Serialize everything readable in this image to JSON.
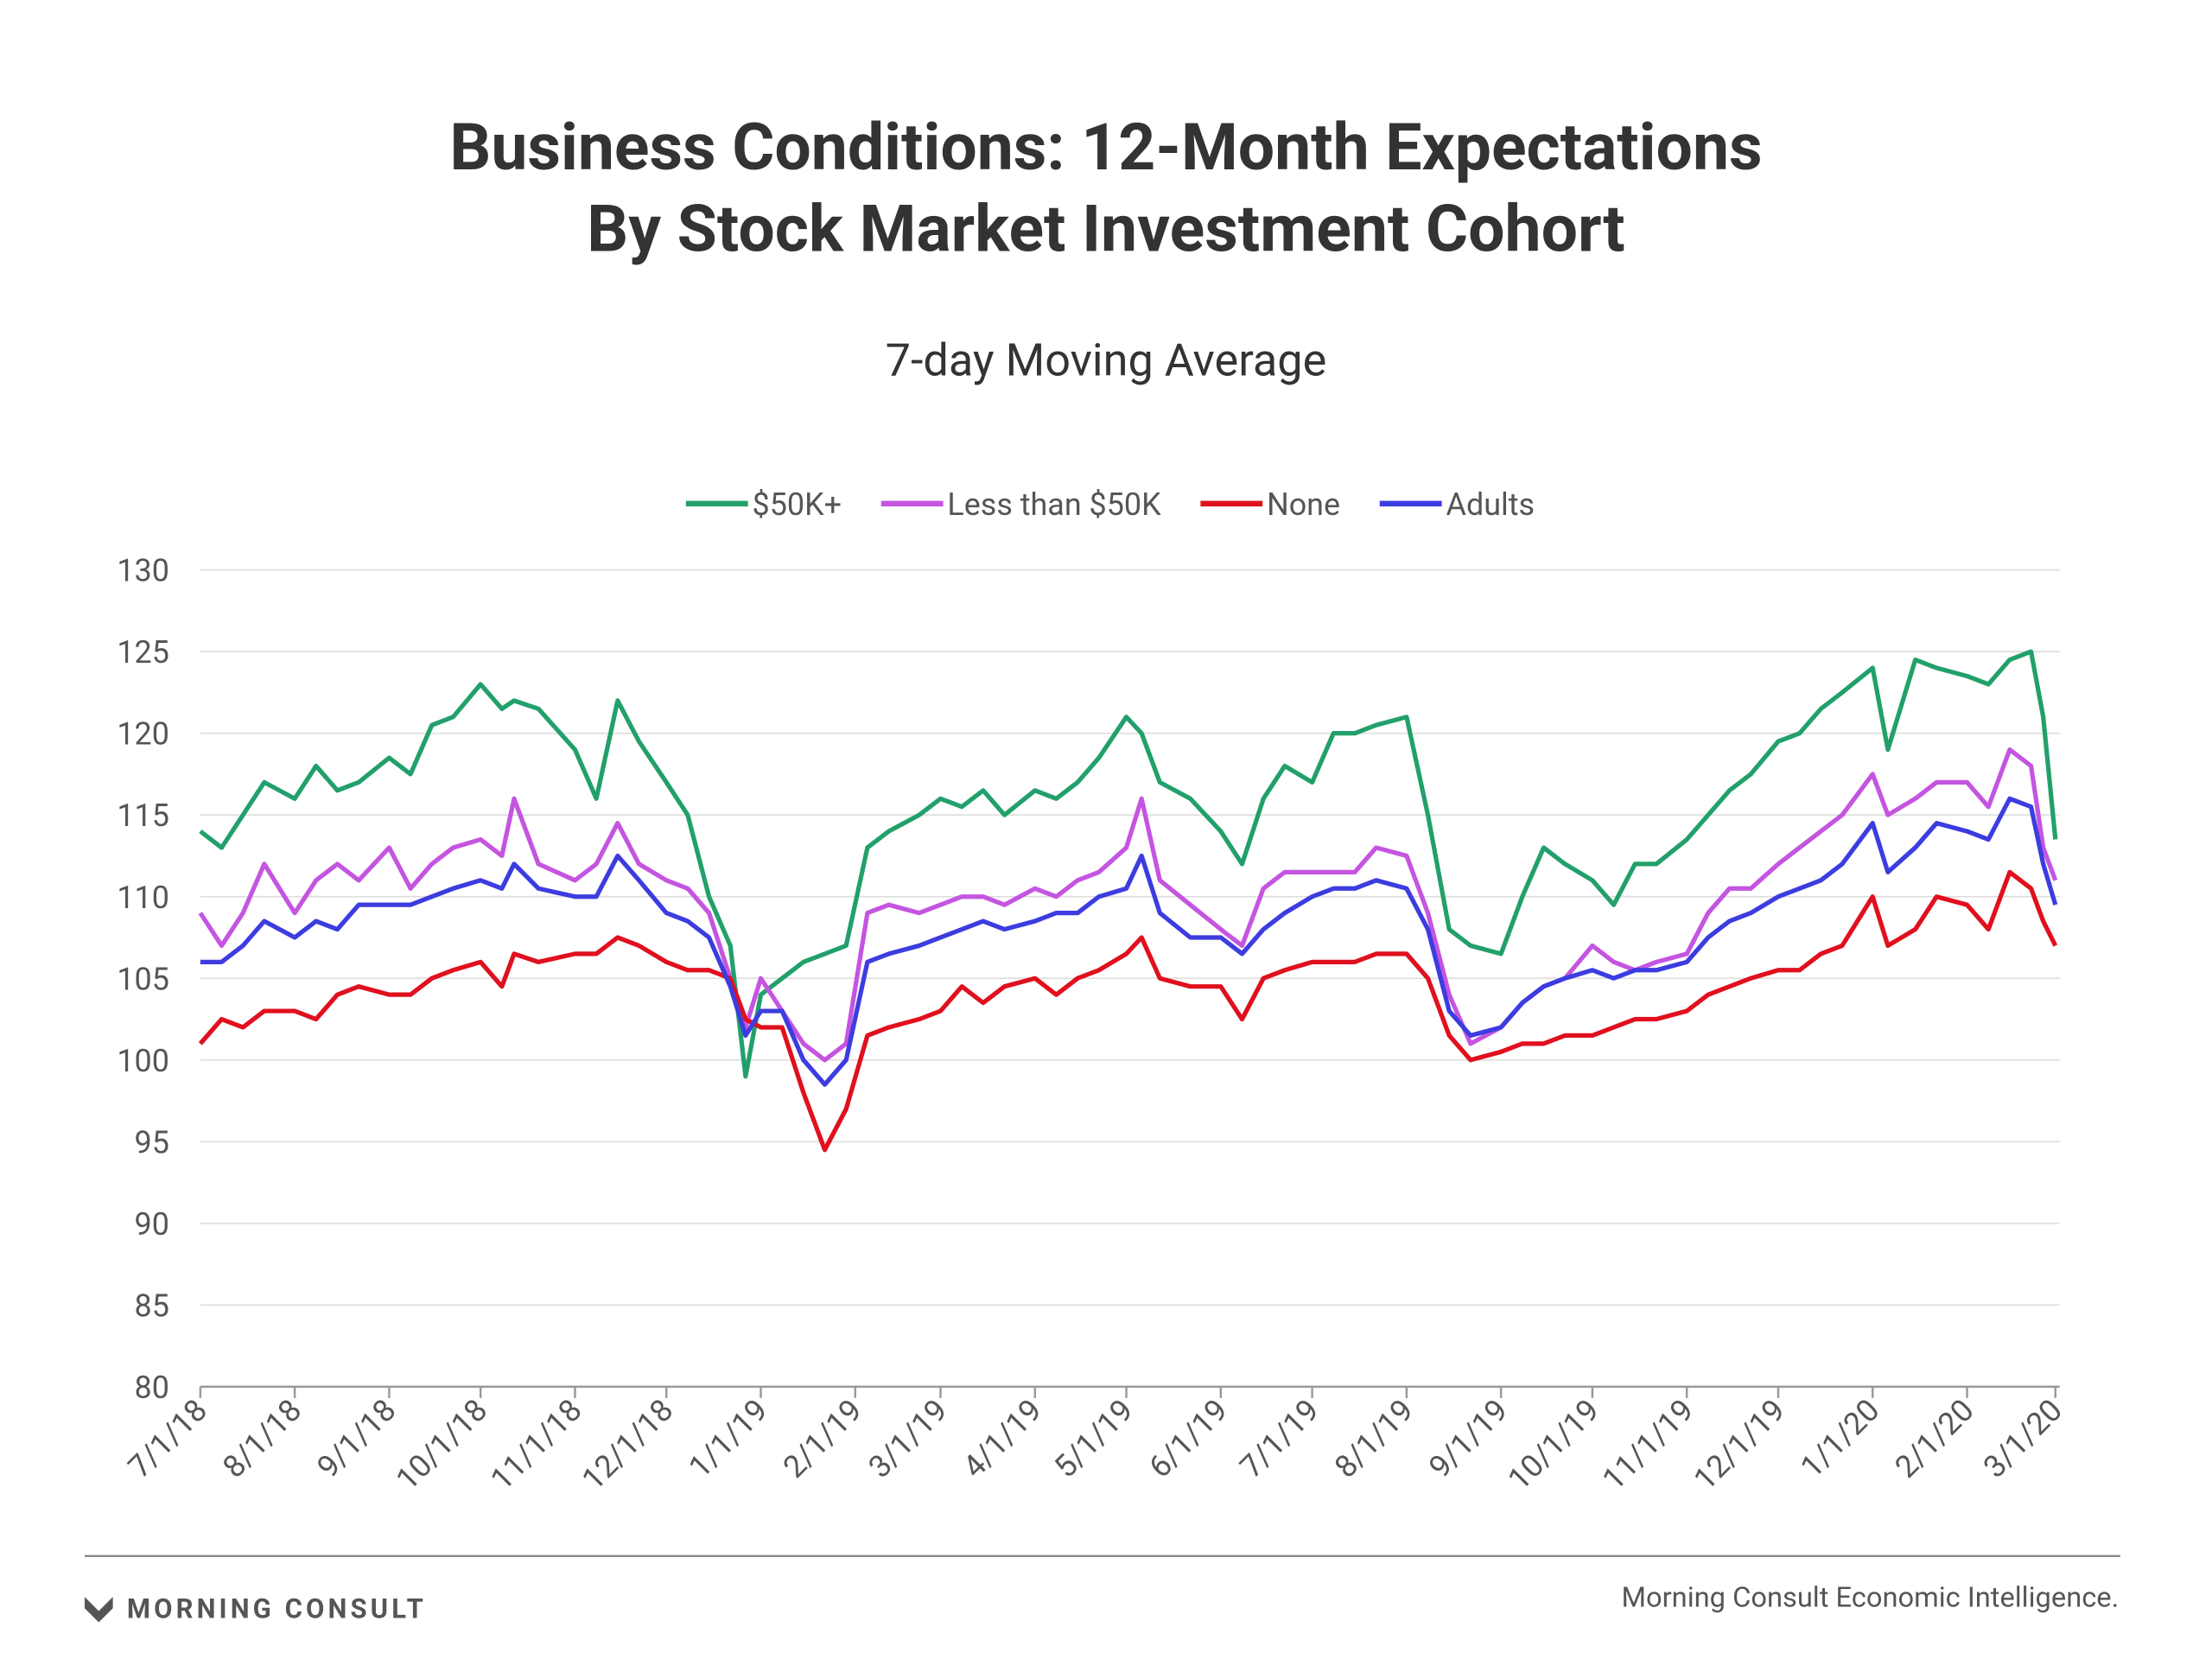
{
  "chart_data": {
    "type": "line",
    "title": [
      "Business Conditions: 12-Month Expectations",
      "By Stock Market Investment Cohort"
    ],
    "subtitle": "7-day Moving Average",
    "x": [
      "2018-07-01",
      "2018-07-08",
      "2018-07-15",
      "2018-07-22",
      "2018-08-01",
      "2018-08-08",
      "2018-08-15",
      "2018-08-22",
      "2018-09-01",
      "2018-09-08",
      "2018-09-15",
      "2018-09-22",
      "2018-10-01",
      "2018-10-08",
      "2018-10-12",
      "2018-10-20",
      "2018-11-01",
      "2018-11-08",
      "2018-11-15",
      "2018-11-22",
      "2018-12-01",
      "2018-12-08",
      "2018-12-15",
      "2018-12-22",
      "2018-12-27",
      "2019-01-01",
      "2019-01-08",
      "2019-01-15",
      "2019-01-22",
      "2019-01-29",
      "2019-02-05",
      "2019-02-12",
      "2019-02-22",
      "2019-03-01",
      "2019-03-08",
      "2019-03-15",
      "2019-03-22",
      "2019-04-01",
      "2019-04-08",
      "2019-04-15",
      "2019-04-22",
      "2019-05-01",
      "2019-05-06",
      "2019-05-12",
      "2019-05-22",
      "2019-06-01",
      "2019-06-08",
      "2019-06-15",
      "2019-06-22",
      "2019-07-01",
      "2019-07-08",
      "2019-07-15",
      "2019-07-22",
      "2019-08-01",
      "2019-08-08",
      "2019-08-15",
      "2019-08-22",
      "2019-09-01",
      "2019-09-08",
      "2019-09-15",
      "2019-09-22",
      "2019-10-01",
      "2019-10-08",
      "2019-10-15",
      "2019-10-22",
      "2019-11-01",
      "2019-11-08",
      "2019-11-15",
      "2019-11-22",
      "2019-12-01",
      "2019-12-08",
      "2019-12-15",
      "2019-12-22",
      "2020-01-01",
      "2020-01-06",
      "2020-01-15",
      "2020-01-22",
      "2020-02-01",
      "2020-02-08",
      "2020-02-15",
      "2020-02-22",
      "2020-02-26",
      "2020-03-01"
    ],
    "series": [
      {
        "name": "$50K+",
        "color": "#22a06b",
        "values": [
          114,
          113,
          115,
          117,
          116,
          118,
          116.5,
          117,
          118.5,
          117.5,
          120.5,
          121,
          123,
          121.5,
          122,
          121.5,
          119,
          116,
          122,
          119.5,
          117,
          115,
          110,
          107,
          99,
          104,
          105,
          106,
          106.5,
          107,
          113,
          114,
          115,
          116,
          115.5,
          116.5,
          115,
          116.5,
          116,
          117,
          118.5,
          121,
          120,
          117,
          116,
          114,
          112,
          116,
          118,
          117,
          120,
          120,
          120.5,
          121,
          115,
          108,
          107,
          106.5,
          110,
          113,
          112,
          111,
          109.5,
          112,
          112,
          113.5,
          115,
          116.5,
          117.5,
          119.5,
          120,
          121.5,
          122.5,
          124,
          119,
          124.5,
          124,
          123.5,
          123,
          124.5,
          125,
          121,
          113.5
        ]
      },
      {
        "name": "Less than $50K",
        "color": "#c455e0",
        "values": [
          109,
          107,
          109,
          112,
          109,
          111,
          112,
          111,
          113,
          110.5,
          112,
          113,
          113.5,
          112.5,
          116,
          112,
          111,
          112,
          114.5,
          112,
          111,
          110.5,
          109,
          105,
          102,
          105,
          103,
          101,
          100,
          101,
          109,
          109.5,
          109,
          109.5,
          110,
          110,
          109.5,
          110.5,
          110,
          111,
          111.5,
          113,
          116,
          111,
          109.5,
          108,
          107,
          110.5,
          111.5,
          111.5,
          111.5,
          111.5,
          113,
          112.5,
          109,
          104,
          101,
          102,
          103.5,
          104.5,
          105,
          107,
          106,
          105.5,
          106,
          106.5,
          109,
          110.5,
          110.5,
          112,
          113,
          114,
          115,
          117.5,
          115,
          116,
          117,
          117,
          115.5,
          119,
          118,
          113,
          111
        ]
      },
      {
        "name": "None",
        "color": "#e0101e",
        "values": [
          101,
          102.5,
          102,
          103,
          103,
          102.5,
          104,
          104.5,
          104,
          104,
          105,
          105.5,
          106,
          104.5,
          106.5,
          106,
          106.5,
          106.5,
          107.5,
          107,
          106,
          105.5,
          105.5,
          105,
          102.5,
          102,
          102,
          98,
          94.5,
          97,
          101.5,
          102,
          102.5,
          103,
          104.5,
          103.5,
          104.5,
          105,
          104,
          105,
          105.5,
          106.5,
          107.5,
          105,
          104.5,
          104.5,
          102.5,
          105,
          105.5,
          106,
          106,
          106,
          106.5,
          106.5,
          105,
          101.5,
          100,
          100.5,
          101,
          101,
          101.5,
          101.5,
          102,
          102.5,
          102.5,
          103,
          104,
          104.5,
          105,
          105.5,
          105.5,
          106.5,
          107,
          110,
          107,
          108,
          110,
          109.5,
          108,
          111.5,
          110.5,
          108.5,
          107
        ]
      },
      {
        "name": "Adults",
        "color": "#3c3ce0",
        "values": [
          106,
          106,
          107,
          108.5,
          107.5,
          108.5,
          108,
          109.5,
          109.5,
          109.5,
          110,
          110.5,
          111,
          110.5,
          112,
          110.5,
          110,
          110,
          112.5,
          111,
          109,
          108.5,
          107.5,
          104.5,
          101.5,
          103,
          103,
          100,
          98.5,
          100,
          106,
          106.5,
          107,
          107.5,
          108,
          108.5,
          108,
          108.5,
          109,
          109,
          110,
          110.5,
          112.5,
          109,
          107.5,
          107.5,
          106.5,
          108,
          109,
          110,
          110.5,
          110.5,
          111,
          110.5,
          108,
          103,
          101.5,
          102,
          103.5,
          104.5,
          105,
          105.5,
          105,
          105.5,
          105.5,
          106,
          107.5,
          108.5,
          109,
          110,
          110.5,
          111,
          112,
          114.5,
          111.5,
          113,
          114.5,
          114,
          113.5,
          116,
          115.5,
          112,
          109.5
        ]
      }
    ],
    "xlim": [
      "2018-07-01",
      "2020-03-01"
    ],
    "xticks": [
      {
        "value": "2018-07-01",
        "label": "7/1/18"
      },
      {
        "value": "2018-08-01",
        "label": "8/1/18"
      },
      {
        "value": "2018-09-01",
        "label": "9/1/18"
      },
      {
        "value": "2018-10-01",
        "label": "10/1/18"
      },
      {
        "value": "2018-11-01",
        "label": "11/1/18"
      },
      {
        "value": "2018-12-01",
        "label": "12/1/18"
      },
      {
        "value": "2019-01-01",
        "label": "1/1/19"
      },
      {
        "value": "2019-02-01",
        "label": "2/1/19"
      },
      {
        "value": "2019-03-01",
        "label": "3/1/19"
      },
      {
        "value": "2019-04-01",
        "label": "4/1/19"
      },
      {
        "value": "2019-05-01",
        "label": "5/1/19"
      },
      {
        "value": "2019-06-01",
        "label": "6/1/19"
      },
      {
        "value": "2019-07-01",
        "label": "7/1/19"
      },
      {
        "value": "2019-08-01",
        "label": "8/1/19"
      },
      {
        "value": "2019-09-01",
        "label": "9/1/19"
      },
      {
        "value": "2019-10-01",
        "label": "10/1/19"
      },
      {
        "value": "2019-11-01",
        "label": "11/1/19"
      },
      {
        "value": "2019-12-01",
        "label": "12/1/19"
      },
      {
        "value": "2020-01-01",
        "label": "1/1/20"
      },
      {
        "value": "2020-02-01",
        "label": "2/1/20"
      },
      {
        "value": "2020-03-01",
        "label": "3/1/20"
      }
    ],
    "ylim": [
      80,
      130
    ],
    "yticks": [
      80,
      85,
      90,
      95,
      100,
      105,
      110,
      115,
      120,
      125,
      130
    ],
    "grid": true,
    "legend": "top"
  },
  "footer": {
    "logo": "MORNING CONSULT",
    "source": "Morning Consult Economic Intelligence."
  }
}
